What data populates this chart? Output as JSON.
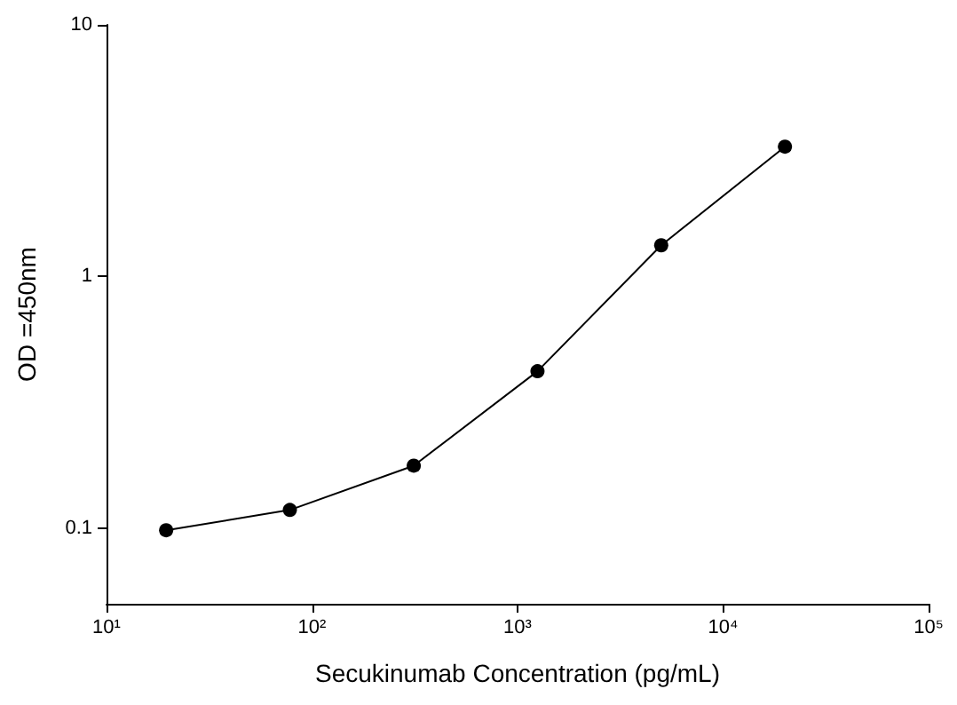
{
  "chart_data": {
    "type": "line",
    "xlabel": "Secukinumab Concentration (pg/mL)",
    "ylabel": "OD =450nm",
    "log": "xy",
    "grid": false,
    "marker": "circle",
    "line_style": "solid",
    "x": [
      19.5,
      78,
      312.5,
      1250,
      5000,
      20000
    ],
    "series": [
      {
        "color": "#000000",
        "values": [
          0.098,
          0.118,
          0.177,
          0.42,
          1.33,
          3.28
        ]
      }
    ],
    "xlim": [
      10,
      100000
    ],
    "xticks": [
      {
        "value": 10,
        "label": "10¹"
      },
      {
        "value": 100,
        "label": "10²"
      },
      {
        "value": 1000,
        "label": "10³"
      },
      {
        "value": 10000,
        "label": "10⁴"
      },
      {
        "value": 100000,
        "label": "10⁵"
      }
    ],
    "ylim": [
      0.05,
      10
    ],
    "yticks": [
      0.1,
      1,
      10
    ]
  }
}
